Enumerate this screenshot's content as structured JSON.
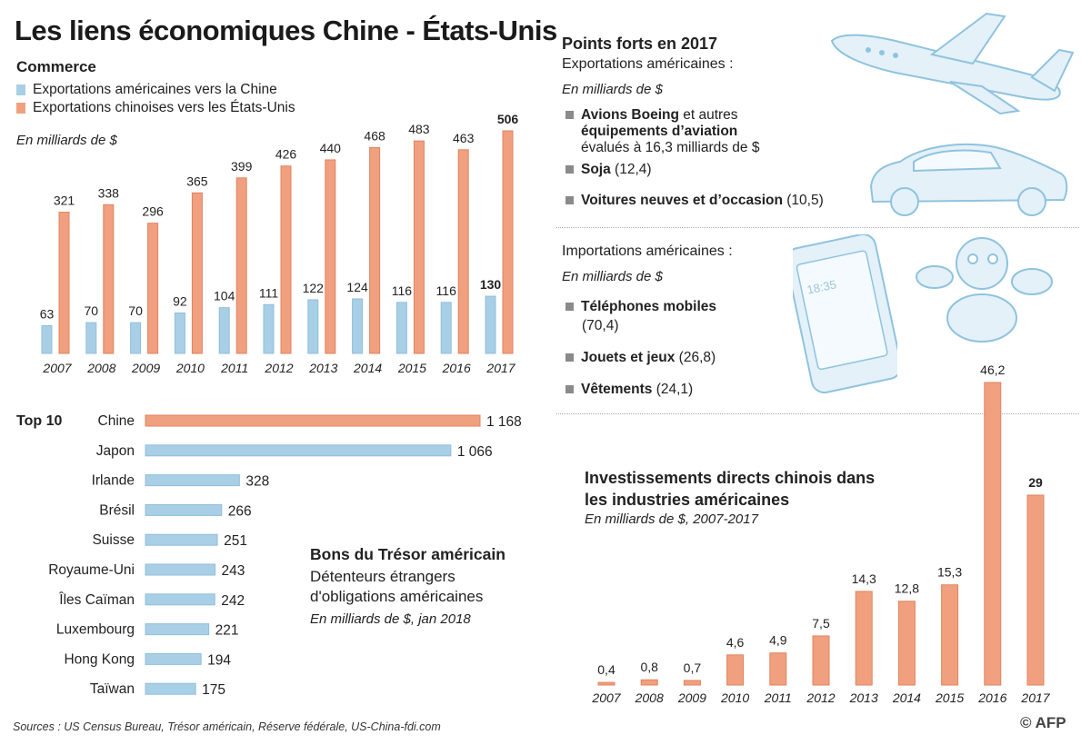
{
  "title": "Les liens économiques Chine - États-Unis",
  "trade": {
    "heading": "Commerce",
    "legend_us": "Exportations américaines vers la Chine",
    "legend_cn": "Exportations chinoises vers les États-Unis",
    "unit": "En milliards de $"
  },
  "top10": {
    "label": "Top 10",
    "title": "Bons du Trésor américain",
    "subtitle": "Détenteurs étrangers d'obligations américaines",
    "unit": "En milliards de $,  jan 2018"
  },
  "points_forts": {
    "title": "Points forts en 2017",
    "exports_label": "Exportations américaines :",
    "exports_unit": "En milliards de $",
    "exports": [
      {
        "bold": "Avions Boeing",
        "text": " et autres ",
        "bold2": "équipements d’aviation",
        "text2": "évalués à 16,3 milliards de $"
      },
      {
        "bold": "Soja",
        "text": " (12,4)"
      },
      {
        "bold": "Voitures neuves et d’occasion",
        "text": " (10,5)"
      }
    ],
    "imports_label": "Importations américaines :",
    "imports_unit": "En milliards de $",
    "imports": [
      {
        "bold": "Téléphones mobiles",
        "text": "(70,4)"
      },
      {
        "bold": "Jouets et jeux",
        "text": " (26,8)"
      },
      {
        "bold": "Vêtements",
        "text": " (24,1)"
      }
    ],
    "phone_time": "18:35"
  },
  "investment": {
    "title": "Investissements directs chinois dans les industries américaines",
    "unit": "En milliards de $, 2007-2017"
  },
  "sources": "Sources : US Census Bureau, Trésor américain, Réserve fédérale, US-China-fdi.com",
  "credit": "© AFP",
  "colors": {
    "us": "#a9cfe6",
    "cn": "#f0a07e",
    "us_stroke": "#8fbfdc",
    "cn_stroke": "#e0845f"
  },
  "chart_data": [
    {
      "type": "bar",
      "categories": [
        "2007",
        "2008",
        "2009",
        "2010",
        "2011",
        "2012",
        "2013",
        "2014",
        "2015",
        "2016",
        "2017"
      ],
      "series": [
        {
          "name": "Exportations américaines vers la Chine",
          "values": [
            63,
            70,
            70,
            92,
            104,
            111,
            122,
            124,
            116,
            116,
            130
          ]
        },
        {
          "name": "Exportations chinoises vers les États-Unis",
          "values": [
            321,
            338,
            296,
            365,
            399,
            426,
            440,
            468,
            483,
            463,
            506
          ]
        }
      ],
      "ylim": [
        0,
        506
      ]
    },
    {
      "type": "bar",
      "orientation": "horizontal",
      "categories": [
        "Chine",
        "Japon",
        "Irlande",
        "Brésil",
        "Suisse",
        "Royaume-Uni",
        "Îles Caïman",
        "Luxembourg",
        "Hong Kong",
        "Taïwan"
      ],
      "values": [
        1168,
        1066,
        328,
        266,
        251,
        243,
        242,
        221,
        194,
        175
      ],
      "value_labels": [
        "1 168",
        "1 066",
        "328",
        "266",
        "251",
        "243",
        "242",
        "221",
        "194",
        "175"
      ],
      "highlight": "Chine"
    },
    {
      "type": "bar",
      "categories": [
        "2007",
        "2008",
        "2009",
        "2010",
        "2011",
        "2012",
        "2013",
        "2014",
        "2015",
        "2016",
        "2017"
      ],
      "values": [
        0.4,
        0.8,
        0.7,
        4.6,
        4.9,
        7.5,
        14.3,
        12.8,
        15.3,
        46.2,
        29
      ],
      "value_labels": [
        "0,4",
        "0,8",
        "0,7",
        "4,6",
        "4,9",
        "7,5",
        "14,3",
        "12,8",
        "15,3",
        "46,2",
        "29"
      ]
    }
  ]
}
